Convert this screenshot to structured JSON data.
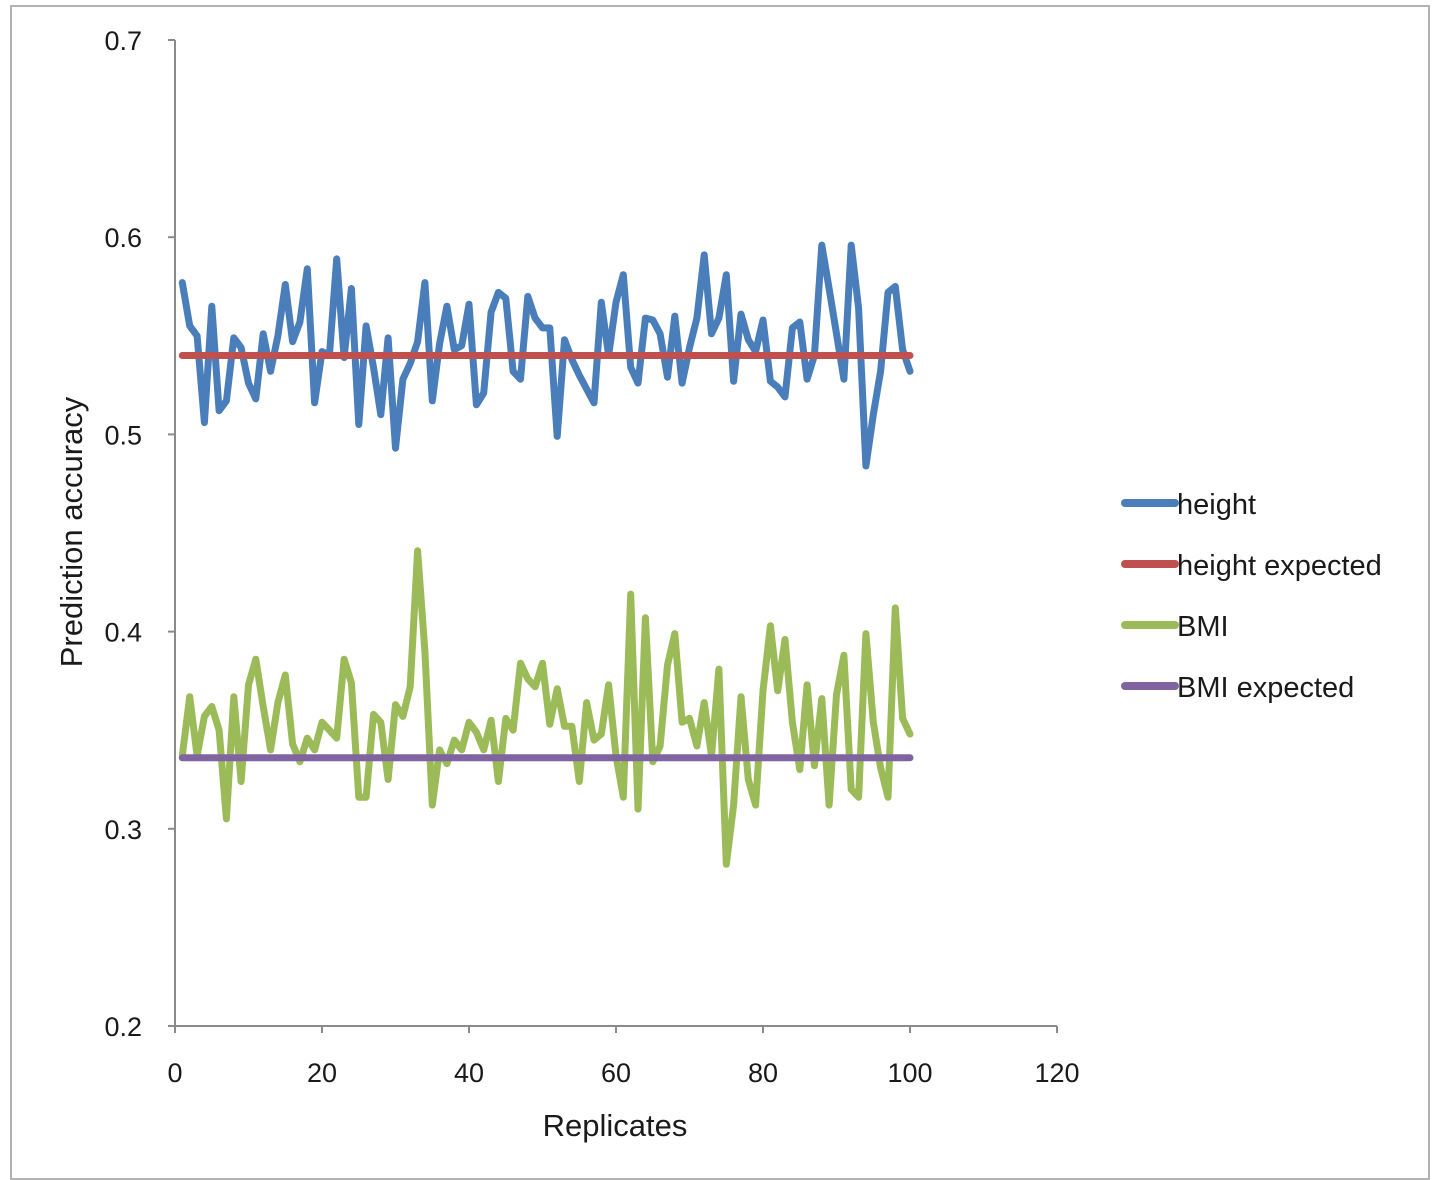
{
  "chart_data": {
    "type": "line",
    "title": "",
    "xlabel": "Replicates",
    "ylabel": "Prediction accuracy",
    "xlim": [
      0,
      120
    ],
    "ylim": [
      0.2,
      0.7
    ],
    "x_ticks": [
      0,
      20,
      40,
      60,
      80,
      100,
      120
    ],
    "y_ticks": [
      0.2,
      0.3,
      0.4,
      0.5,
      0.6,
      0.7
    ],
    "x_tick_labels": [
      "0",
      "20",
      "40",
      "60",
      "80",
      "100",
      "120"
    ],
    "y_tick_labels": [
      "0.2",
      "0.3",
      "0.4",
      "0.5",
      "0.6",
      "0.7"
    ],
    "grid": false,
    "legend_position": "right",
    "x": [
      1,
      2,
      3,
      4,
      5,
      6,
      7,
      8,
      9,
      10,
      11,
      12,
      13,
      14,
      15,
      16,
      17,
      18,
      19,
      20,
      21,
      22,
      23,
      24,
      25,
      26,
      27,
      28,
      29,
      30,
      31,
      32,
      33,
      34,
      35,
      36,
      37,
      38,
      39,
      40,
      41,
      42,
      43,
      44,
      45,
      46,
      47,
      48,
      49,
      50,
      51,
      52,
      53,
      54,
      55,
      56,
      57,
      58,
      59,
      60,
      61,
      62,
      63,
      64,
      65,
      66,
      67,
      68,
      69,
      70,
      71,
      72,
      73,
      74,
      75,
      76,
      77,
      78,
      79,
      80,
      81,
      82,
      83,
      84,
      85,
      86,
      87,
      88,
      89,
      90,
      91,
      92,
      93,
      94,
      95,
      96,
      97,
      98,
      99,
      100
    ],
    "series": [
      {
        "name": "height",
        "color": "#4a7ebb",
        "values": [
          0.577,
          0.555,
          0.55,
          0.506,
          0.565,
          0.512,
          0.517,
          0.549,
          0.544,
          0.526,
          0.518,
          0.551,
          0.532,
          0.55,
          0.576,
          0.547,
          0.557,
          0.584,
          0.516,
          0.542,
          0.54,
          0.589,
          0.539,
          0.574,
          0.505,
          0.555,
          0.534,
          0.51,
          0.549,
          0.493,
          0.528,
          0.536,
          0.547,
          0.577,
          0.517,
          0.546,
          0.565,
          0.543,
          0.545,
          0.566,
          0.515,
          0.521,
          0.562,
          0.572,
          0.569,
          0.532,
          0.528,
          0.57,
          0.559,
          0.554,
          0.554,
          0.499,
          0.548,
          0.538,
          0.53,
          0.523,
          0.516,
          0.567,
          0.54,
          0.567,
          0.581,
          0.534,
          0.526,
          0.559,
          0.558,
          0.551,
          0.529,
          0.56,
          0.526,
          0.544,
          0.559,
          0.591,
          0.551,
          0.559,
          0.581,
          0.527,
          0.561,
          0.548,
          0.542,
          0.558,
          0.527,
          0.524,
          0.519,
          0.554,
          0.557,
          0.528,
          0.54,
          0.596,
          0.574,
          0.551,
          0.528,
          0.596,
          0.564,
          0.484,
          0.51,
          0.532,
          0.572,
          0.575,
          0.543,
          0.532
        ]
      },
      {
        "name": "height expected",
        "color": "#c0504d",
        "values": [
          0.54,
          0.54,
          0.54,
          0.54,
          0.54,
          0.54,
          0.54,
          0.54,
          0.54,
          0.54,
          0.54,
          0.54,
          0.54,
          0.54,
          0.54,
          0.54,
          0.54,
          0.54,
          0.54,
          0.54,
          0.54,
          0.54,
          0.54,
          0.54,
          0.54,
          0.54,
          0.54,
          0.54,
          0.54,
          0.54,
          0.54,
          0.54,
          0.54,
          0.54,
          0.54,
          0.54,
          0.54,
          0.54,
          0.54,
          0.54,
          0.54,
          0.54,
          0.54,
          0.54,
          0.54,
          0.54,
          0.54,
          0.54,
          0.54,
          0.54,
          0.54,
          0.54,
          0.54,
          0.54,
          0.54,
          0.54,
          0.54,
          0.54,
          0.54,
          0.54,
          0.54,
          0.54,
          0.54,
          0.54,
          0.54,
          0.54,
          0.54,
          0.54,
          0.54,
          0.54,
          0.54,
          0.54,
          0.54,
          0.54,
          0.54,
          0.54,
          0.54,
          0.54,
          0.54,
          0.54,
          0.54,
          0.54,
          0.54,
          0.54,
          0.54,
          0.54,
          0.54,
          0.54,
          0.54,
          0.54,
          0.54,
          0.54,
          0.54,
          0.54,
          0.54,
          0.54,
          0.54,
          0.54,
          0.54,
          0.54
        ]
      },
      {
        "name": "BMI",
        "color": "#9bbb59",
        "values": [
          0.337,
          0.367,
          0.337,
          0.357,
          0.362,
          0.35,
          0.305,
          0.367,
          0.324,
          0.373,
          0.386,
          0.362,
          0.34,
          0.364,
          0.378,
          0.343,
          0.334,
          0.346,
          0.34,
          0.354,
          0.35,
          0.346,
          0.386,
          0.374,
          0.316,
          0.316,
          0.358,
          0.354,
          0.325,
          0.363,
          0.357,
          0.372,
          0.441,
          0.39,
          0.312,
          0.34,
          0.333,
          0.345,
          0.34,
          0.354,
          0.349,
          0.34,
          0.355,
          0.324,
          0.356,
          0.35,
          0.384,
          0.376,
          0.372,
          0.384,
          0.353,
          0.371,
          0.352,
          0.352,
          0.324,
          0.364,
          0.345,
          0.348,
          0.373,
          0.337,
          0.316,
          0.419,
          0.31,
          0.407,
          0.334,
          0.342,
          0.383,
          0.399,
          0.354,
          0.356,
          0.342,
          0.364,
          0.337,
          0.381,
          0.282,
          0.312,
          0.367,
          0.325,
          0.312,
          0.37,
          0.403,
          0.37,
          0.396,
          0.354,
          0.33,
          0.373,
          0.332,
          0.366,
          0.312,
          0.368,
          0.388,
          0.32,
          0.316,
          0.399,
          0.354,
          0.331,
          0.316,
          0.412,
          0.356,
          0.348
        ]
      },
      {
        "name": "BMI expected",
        "color": "#8064a2",
        "values": [
          0.336,
          0.336,
          0.336,
          0.336,
          0.336,
          0.336,
          0.336,
          0.336,
          0.336,
          0.336,
          0.336,
          0.336,
          0.336,
          0.336,
          0.336,
          0.336,
          0.336,
          0.336,
          0.336,
          0.336,
          0.336,
          0.336,
          0.336,
          0.336,
          0.336,
          0.336,
          0.336,
          0.336,
          0.336,
          0.336,
          0.336,
          0.336,
          0.336,
          0.336,
          0.336,
          0.336,
          0.336,
          0.336,
          0.336,
          0.336,
          0.336,
          0.336,
          0.336,
          0.336,
          0.336,
          0.336,
          0.336,
          0.336,
          0.336,
          0.336,
          0.336,
          0.336,
          0.336,
          0.336,
          0.336,
          0.336,
          0.336,
          0.336,
          0.336,
          0.336,
          0.336,
          0.336,
          0.336,
          0.336,
          0.336,
          0.336,
          0.336,
          0.336,
          0.336,
          0.336,
          0.336,
          0.336,
          0.336,
          0.336,
          0.336,
          0.336,
          0.336,
          0.336,
          0.336,
          0.336,
          0.336,
          0.336,
          0.336,
          0.336,
          0.336,
          0.336,
          0.336,
          0.336,
          0.336,
          0.336,
          0.336,
          0.336,
          0.336,
          0.336,
          0.336,
          0.336,
          0.336,
          0.336,
          0.336,
          0.336
        ]
      }
    ]
  }
}
